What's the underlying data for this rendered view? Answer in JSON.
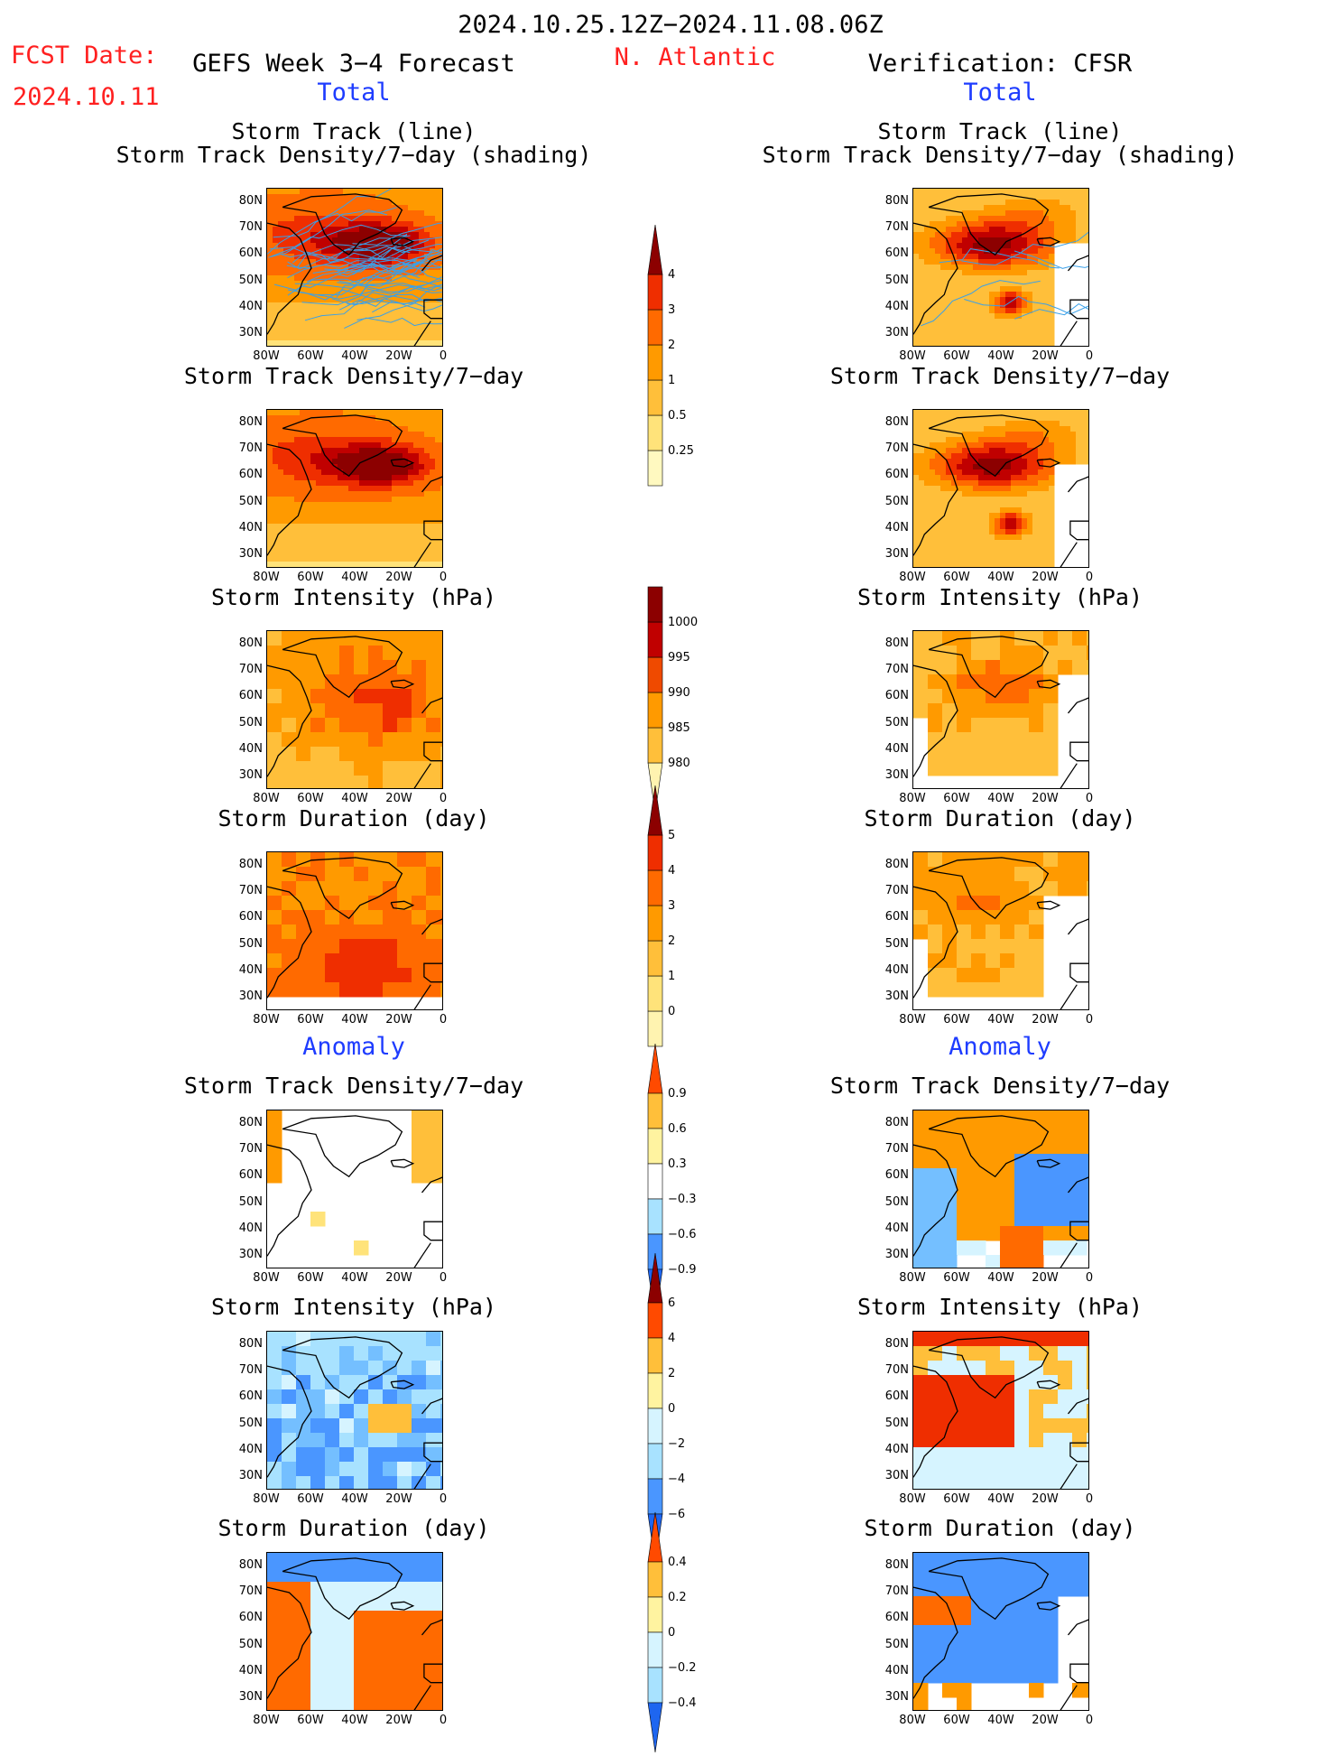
{
  "header": {
    "period": "2024.10.25.12Z−2024.11.08.06Z",
    "fcst_date_label": "FCST Date:",
    "fcst_date_value": "2024.10.11",
    "left_title": "GEFS Week 3−4 Forecast",
    "region": "N. Atlantic",
    "right_title": "Verification: CFSR",
    "total_left": "Total",
    "total_right": "Total",
    "anomaly_left": "Anomaly",
    "anomaly_right": "Anomaly"
  },
  "panel_titles": {
    "track_line": "Storm Track (line)",
    "track_density_shading": "Storm Track Density/7−day (shading)",
    "track_density": "Storm Track Density/7−day",
    "intensity": "Storm Intensity (hPa)",
    "duration": "Storm Duration (day)"
  },
  "axes": {
    "lat_ticks": [
      "80N",
      "70N",
      "60N",
      "50N",
      "40N",
      "30N"
    ],
    "lon_ticks": [
      "80W",
      "60W",
      "40W",
      "20W",
      "0"
    ]
  },
  "colorbars": {
    "density_total": [
      "4",
      "3",
      "2",
      "1",
      "0.5",
      "0.25"
    ],
    "intensity_total": [
      "1000",
      "995",
      "990",
      "985",
      "980"
    ],
    "duration_total": [
      "5",
      "4",
      "3",
      "2",
      "1",
      "0"
    ],
    "density_anom": [
      "0.9",
      "0.6",
      "0.3",
      "−0.3",
      "−0.6",
      "−0.9"
    ],
    "intensity_anom": [
      "6",
      "4",
      "2",
      "0",
      "−2",
      "−4",
      "−6"
    ],
    "duration_anom": [
      "0.4",
      "0.2",
      "0",
      "−0.2",
      "−0.4"
    ]
  },
  "colors": {
    "warm": [
      "#fff9c0",
      "#ffe37a",
      "#ffbf3a",
      "#ff9a00",
      "#ff6a00",
      "#ef2e00",
      "#c00000",
      "#8c0000"
    ],
    "cool": [
      "#d6f4ff",
      "#a8e2ff",
      "#74bfff",
      "#4a96ff",
      "#1e66f0"
    ],
    "track_line": "#3aa0e8",
    "title_red": "#ff2020",
    "title_blue": "#1e3cff"
  }
}
